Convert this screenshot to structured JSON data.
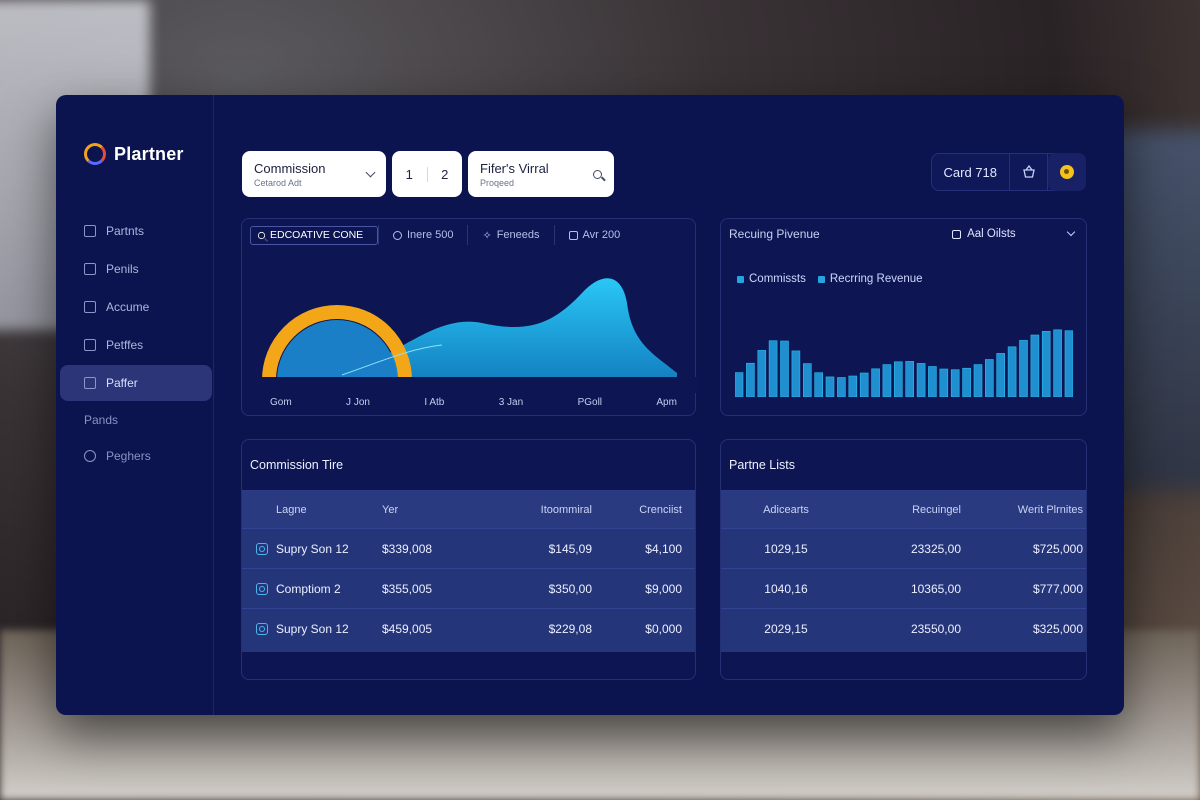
{
  "brand": {
    "name": "Plartner"
  },
  "sidebar": {
    "items": [
      {
        "label": "Partnts",
        "icon": "home-icon"
      },
      {
        "label": "Penils",
        "icon": "list-icon"
      },
      {
        "label": "Accume",
        "icon": "chat-icon"
      },
      {
        "label": "Petffes",
        "icon": "puzzle-icon"
      },
      {
        "label": "Paffer",
        "icon": "document-icon",
        "active": true
      }
    ],
    "sections": [
      {
        "label": "Pands"
      },
      {
        "label": "Peghers",
        "icon": "help-icon"
      }
    ]
  },
  "toolbar": {
    "commission": {
      "label": "Commission",
      "sub": "Cetarod Adt"
    },
    "pager": [
      "1",
      "2"
    ],
    "filter": {
      "label": "Fifer's Virral",
      "sub": "Proqeed"
    }
  },
  "topbar": {
    "card_label": "Card 718"
  },
  "main_chart": {
    "search": "EDCOATIVE CONE",
    "tabs": [
      {
        "label": "Inere 500",
        "icon": "gear-icon"
      },
      {
        "label": "Feneeds",
        "icon": "sparkle-icon"
      },
      {
        "label": "Avr 200",
        "icon": "calendar-icon"
      }
    ],
    "x_labels": [
      "Gom",
      "J Jon",
      "I Atb",
      "3 Jan",
      "PGoll",
      "Apm"
    ],
    "colors": {
      "ring": "#f4a619",
      "fill": "#1aa7dc"
    }
  },
  "recurring": {
    "title": "Recuing Pivenue",
    "select": "Aal Oilsts",
    "legend": [
      "Commissts",
      "Recrring Revenue"
    ],
    "colors": {
      "bar": "#1f8fcf",
      "area": "#1aa7dc"
    }
  },
  "commission_table": {
    "title": "Commission Tire",
    "headers": [
      "Lagne",
      "Yer",
      "Itoommiral",
      "Crenciist"
    ],
    "rows": [
      {
        "name": "Supry Son 12",
        "tier": "$339,008",
        "nominal": "$145,09",
        "credit": "$4,100"
      },
      {
        "name": "Comptiom 2",
        "tier": "$355,005",
        "nominal": "$350,00",
        "credit": "$9,000"
      },
      {
        "name": "Supry Son 12",
        "tier": "$459,005",
        "nominal": "$229,08",
        "credit": "$0,000"
      }
    ]
  },
  "partner_table": {
    "title": "Partne Lists",
    "headers": [
      "Adicearts",
      "Recuingel",
      "Werit Plrnites"
    ],
    "rows": [
      {
        "a": "1029,15",
        "b": "23325,00",
        "c": "$725,000"
      },
      {
        "a": "1040,16",
        "b": "10365,00",
        "c": "$777,000"
      },
      {
        "a": "2029,15",
        "b": "23550,00",
        "c": "$325,000"
      }
    ]
  }
}
